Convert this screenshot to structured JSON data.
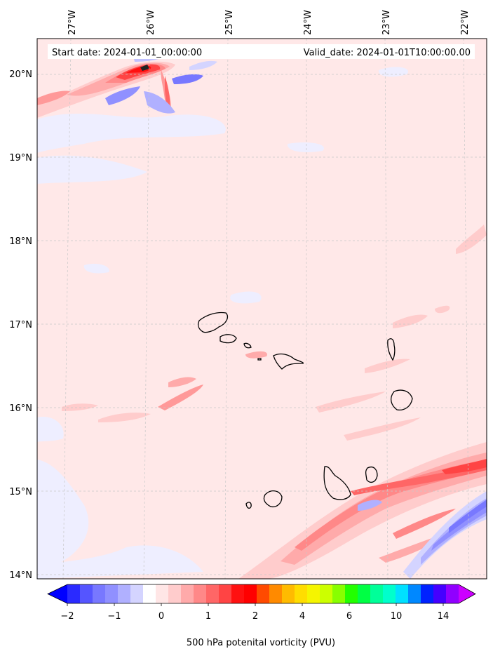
{
  "map": {
    "header": {
      "start_date": "Start date: 2024-01-01_00:00:00",
      "valid_date": "Valid_date: 2024-01-01T10:00:00.00"
    },
    "lon_labels": [
      "27°W",
      "26°W",
      "25°W",
      "24°W",
      "23°W",
      "22°W"
    ],
    "lat_labels": [
      "20°N",
      "19°N",
      "18°N",
      "17°N",
      "16°N",
      "15°N",
      "14°N"
    ],
    "colorbar": {
      "title": "500 hPa potenital vorticity (PVU)",
      "tick_labels": [
        "−2",
        "−1",
        "0",
        "1",
        "2",
        "4",
        "6",
        "10",
        "14"
      ],
      "colors": [
        "#0000ff",
        "#2a2aff",
        "#5555ff",
        "#7878ff",
        "#9090ff",
        "#b0b0ff",
        "#d4d4ff",
        "#ffffff",
        "#ffe6e6",
        "#ffcccc",
        "#ffaaaa",
        "#ff8888",
        "#ff6666",
        "#ff4444",
        "#ff1111",
        "#ff0000",
        "#ff4a00",
        "#ff8a00",
        "#ffbb00",
        "#ffdd00",
        "#f5f500",
        "#ccff00",
        "#88ff00",
        "#22ff00",
        "#00ff44",
        "#00ff99",
        "#00ffcc",
        "#00e0ff",
        "#0088ff",
        "#0022ff",
        "#4400ff",
        "#9000ff",
        "#cc00ff"
      ]
    },
    "background_color": "#ffe8e8",
    "coastline_color": "#000000"
  }
}
